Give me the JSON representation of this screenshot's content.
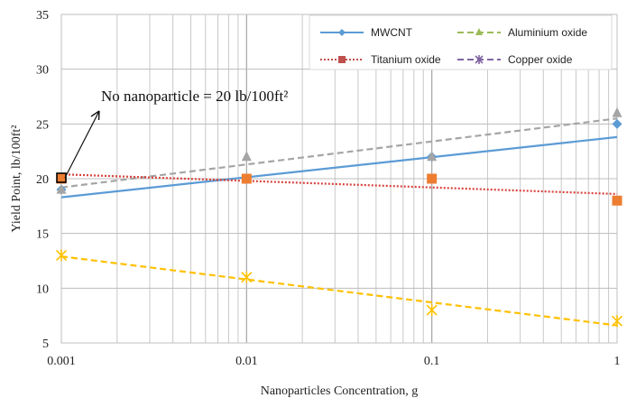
{
  "chart_data": {
    "type": "line",
    "x_scale": "log",
    "xlim": [
      0.001,
      1
    ],
    "ylim": [
      5,
      35
    ],
    "x_ticks": [
      0.001,
      0.01,
      0.1,
      1
    ],
    "x_tick_labels": [
      "0.001",
      "0.01",
      "0.1",
      "1"
    ],
    "y_ticks": [
      5,
      10,
      15,
      20,
      25,
      30,
      35
    ],
    "xlabel": "Nanoparticles Concentration, g",
    "ylabel": "Yield Point, lb/100ft²",
    "grid": true,
    "legend_placement": "top-right",
    "annotation": {
      "text": "No nanoparticle =  20 lb/100ft²",
      "points_to": {
        "x": 0.001,
        "y": 20
      }
    },
    "series": [
      {
        "name": "MWCNT",
        "color": "#5b9bd5",
        "marker": "diamond",
        "line_style": "solid",
        "points": [
          {
            "x": 0.001,
            "y": 19
          },
          {
            "x": 0.01,
            "y": 20
          },
          {
            "x": 0.1,
            "y": 22
          },
          {
            "x": 1,
            "y": 25
          }
        ],
        "trend": [
          {
            "x": 0.001,
            "y": 18.3
          },
          {
            "x": 1,
            "y": 23.8
          }
        ]
      },
      {
        "name": "Aluminium oxide",
        "color": "#9bbb59",
        "marker_color": "#a5a5a5",
        "trend_color": "#a5a5a5",
        "marker": "triangle",
        "line_style": "dashed",
        "points": [
          {
            "x": 0.001,
            "y": 19
          },
          {
            "x": 0.01,
            "y": 22
          },
          {
            "x": 0.1,
            "y": 22
          },
          {
            "x": 1,
            "y": 26
          }
        ],
        "trend": [
          {
            "x": 0.001,
            "y": 19.2
          },
          {
            "x": 1,
            "y": 25.5
          }
        ]
      },
      {
        "name": "Titanium oxide",
        "color": "#c0504d",
        "marker_color": "#ed7d31",
        "trend_color": "#d9413b",
        "marker": "square",
        "line_style": "dotted",
        "points": [
          {
            "x": 0.001,
            "y": 20
          },
          {
            "x": 0.01,
            "y": 20
          },
          {
            "x": 0.1,
            "y": 20
          },
          {
            "x": 1,
            "y": 18
          }
        ],
        "trend": [
          {
            "x": 0.001,
            "y": 20.4
          },
          {
            "x": 1,
            "y": 18.6
          }
        ]
      },
      {
        "name": "Copper oxide",
        "color": "#8064a2",
        "marker_color": "#ffc000",
        "trend_color": "#ffc000",
        "marker": "star",
        "line_style": "dashed",
        "points": [
          {
            "x": 0.001,
            "y": 13
          },
          {
            "x": 0.01,
            "y": 11
          },
          {
            "x": 0.1,
            "y": 8
          },
          {
            "x": 1,
            "y": 7
          }
        ],
        "trend": [
          {
            "x": 0.001,
            "y": 12.9
          },
          {
            "x": 1,
            "y": 6.6
          }
        ]
      }
    ]
  }
}
